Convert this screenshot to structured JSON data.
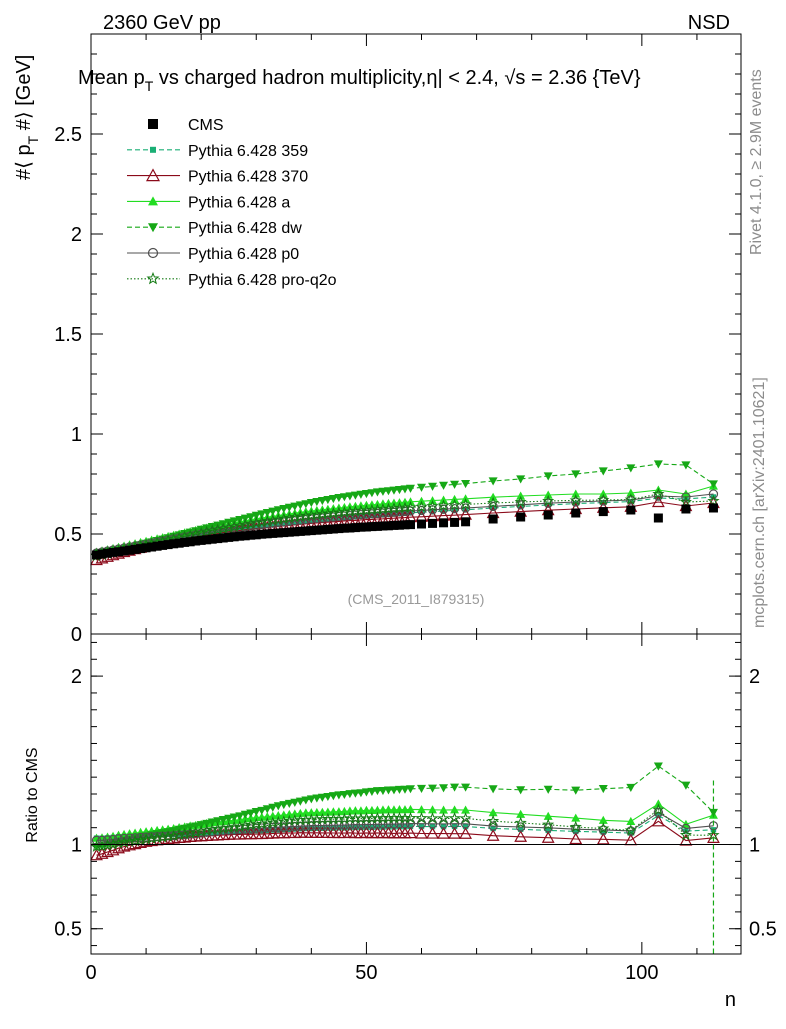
{
  "header": {
    "left": "2360 GeV pp",
    "right": "NSD"
  },
  "side_labels": {
    "top": "Rivet 4.1.0, ≥ 2.9M events",
    "bottom": "mcplots.cern.ch [arXiv:2401.10621]"
  },
  "watermark": "(CMS_2011_I879315)",
  "chart_data": {
    "type": "scatter",
    "title": "Mean p_T vs charged hadron multiplicity, |η| < 2.4, √s = 2.36 {TeV}",
    "title_parts": {
      "a": "Mean p",
      "sub": "T",
      "b": " vs charged hadron multiplicity,",
      "c": "| < 2.4,",
      "d": "s = 2.36 {TeV}",
      "eta": "η",
      "sqrt": "√"
    },
    "xlabel": "n",
    "ylabel": "#⟨ p_T #⟩ [GeV]",
    "ylabel_parts": {
      "a": "#⟨ p",
      "sub": "T",
      "b": " #⟩ [GeV]"
    },
    "ratio_ylabel": "Ratio to CMS",
    "xlim": [
      0,
      118
    ],
    "ylim": [
      0,
      3.0
    ],
    "ratio_ylim": [
      0.35,
      2.25
    ],
    "x_ticks": [
      "0",
      "50",
      "100"
    ],
    "x_tick_values": [
      0,
      50,
      100
    ],
    "y_ticks": [
      "0",
      "0.5",
      "1",
      "1.5",
      "2",
      "2.5"
    ],
    "y_tick_values": [
      0,
      0.5,
      1,
      1.5,
      2,
      2.5
    ],
    "ratio_ticks": [
      "0.5",
      "1",
      "2"
    ],
    "ratio_tick_values": [
      0.5,
      1,
      2
    ],
    "legend": [
      {
        "label": "CMS",
        "color": "#000000",
        "marker": "square",
        "dash": ""
      },
      {
        "label": "Pythia 6.428 359",
        "color": "#1aaf75",
        "marker": "smallsquare",
        "dash": "5,3"
      },
      {
        "label": "Pythia 6.428 370",
        "color": "#8b0a1a",
        "marker": "triangle-open",
        "dash": ""
      },
      {
        "label": "Pythia 6.428 a",
        "color": "#22dd22",
        "marker": "triangle",
        "dash": ""
      },
      {
        "label": "Pythia 6.428 dw",
        "color": "#16a816",
        "marker": "triangle-down",
        "dash": "5,3"
      },
      {
        "label": "Pythia 6.428 p0",
        "color": "#505050",
        "marker": "circle-open",
        "dash": ""
      },
      {
        "label": "Pythia 6.428 pro-q2o",
        "color": "#137a13",
        "marker": "star",
        "dash": "1.5,2"
      }
    ],
    "x": [
      1,
      2,
      3,
      4,
      5,
      6,
      7,
      8,
      9,
      10,
      11,
      12,
      13,
      14,
      15,
      16,
      17,
      18,
      19,
      20,
      21,
      22,
      23,
      24,
      25,
      26,
      27,
      28,
      29,
      30,
      31,
      32,
      33,
      34,
      35,
      36,
      37,
      38,
      39,
      40,
      41,
      42,
      43,
      44,
      45,
      46,
      47,
      48,
      49,
      50,
      51,
      52,
      53,
      54,
      55,
      56,
      57,
      58,
      60,
      62,
      64,
      66,
      68,
      73,
      78,
      83,
      88,
      93,
      98,
      103,
      108,
      113
    ],
    "series": [
      {
        "name": "CMS",
        "values": [
          0.395,
          0.4,
          0.404,
          0.408,
          0.411,
          0.415,
          0.419,
          0.423,
          0.427,
          0.431,
          0.435,
          0.439,
          0.443,
          0.447,
          0.451,
          0.454,
          0.458,
          0.461,
          0.465,
          0.468,
          0.471,
          0.474,
          0.477,
          0.48,
          0.483,
          0.486,
          0.489,
          0.491,
          0.494,
          0.496,
          0.499,
          0.501,
          0.503,
          0.505,
          0.507,
          0.509,
          0.511,
          0.513,
          0.515,
          0.517,
          0.519,
          0.521,
          0.523,
          0.525,
          0.527,
          0.529,
          0.53,
          0.532,
          0.534,
          0.535,
          0.537,
          0.538,
          0.54,
          0.541,
          0.543,
          0.544,
          0.546,
          0.547,
          0.55,
          0.553,
          0.556,
          0.558,
          0.561,
          0.575,
          0.585,
          0.595,
          0.605,
          0.612,
          0.62,
          0.58,
          0.625,
          0.63
        ]
      },
      {
        "name": "Pythia 6.428 359",
        "values": [
          0.41,
          0.415,
          0.42,
          0.425,
          0.43,
          0.435,
          0.44,
          0.445,
          0.45,
          0.455,
          0.46,
          0.465,
          0.47,
          0.474,
          0.478,
          0.482,
          0.486,
          0.49,
          0.494,
          0.498,
          0.502,
          0.506,
          0.51,
          0.514,
          0.518,
          0.522,
          0.526,
          0.53,
          0.533,
          0.537,
          0.54,
          0.543,
          0.546,
          0.549,
          0.552,
          0.555,
          0.558,
          0.561,
          0.564,
          0.566,
          0.569,
          0.571,
          0.574,
          0.576,
          0.579,
          0.581,
          0.583,
          0.586,
          0.588,
          0.59,
          0.592,
          0.594,
          0.596,
          0.598,
          0.6,
          0.602,
          0.604,
          0.606,
          0.609,
          0.612,
          0.615,
          0.618,
          0.621,
          0.63,
          0.638,
          0.645,
          0.652,
          0.657,
          0.662,
          0.68,
          0.675,
          0.685
        ]
      },
      {
        "name": "Pythia 6.428 370",
        "values": [
          0.37,
          0.378,
          0.386,
          0.394,
          0.402,
          0.41,
          0.417,
          0.424,
          0.431,
          0.438,
          0.444,
          0.45,
          0.456,
          0.462,
          0.467,
          0.472,
          0.477,
          0.482,
          0.487,
          0.491,
          0.495,
          0.499,
          0.503,
          0.507,
          0.511,
          0.515,
          0.518,
          0.521,
          0.524,
          0.527,
          0.53,
          0.533,
          0.536,
          0.539,
          0.541,
          0.544,
          0.546,
          0.549,
          0.551,
          0.553,
          0.555,
          0.557,
          0.559,
          0.561,
          0.563,
          0.565,
          0.567,
          0.568,
          0.57,
          0.572,
          0.573,
          0.575,
          0.576,
          0.578,
          0.579,
          0.581,
          0.582,
          0.584,
          0.586,
          0.589,
          0.592,
          0.594,
          0.597,
          0.605,
          0.612,
          0.619,
          0.625,
          0.631,
          0.636,
          0.66,
          0.64,
          0.655
        ]
      },
      {
        "name": "Pythia 6.428 a",
        "values": [
          0.41,
          0.416,
          0.422,
          0.428,
          0.434,
          0.44,
          0.446,
          0.452,
          0.458,
          0.464,
          0.47,
          0.476,
          0.482,
          0.488,
          0.494,
          0.5,
          0.506,
          0.512,
          0.518,
          0.524,
          0.53,
          0.536,
          0.541,
          0.546,
          0.551,
          0.556,
          0.561,
          0.566,
          0.571,
          0.576,
          0.58,
          0.584,
          0.588,
          0.592,
          0.596,
          0.6,
          0.604,
          0.608,
          0.612,
          0.615,
          0.618,
          0.621,
          0.624,
          0.627,
          0.63,
          0.633,
          0.636,
          0.639,
          0.641,
          0.644,
          0.646,
          0.648,
          0.651,
          0.653,
          0.655,
          0.657,
          0.659,
          0.661,
          0.664,
          0.667,
          0.67,
          0.673,
          0.676,
          0.684,
          0.69,
          0.695,
          0.7,
          0.7,
          0.705,
          0.72,
          0.7,
          0.74
        ]
      },
      {
        "name": "Pythia 6.428 dw",
        "values": [
          0.39,
          0.397,
          0.404,
          0.411,
          0.418,
          0.425,
          0.432,
          0.439,
          0.446,
          0.453,
          0.46,
          0.467,
          0.474,
          0.481,
          0.488,
          0.495,
          0.502,
          0.509,
          0.516,
          0.523,
          0.53,
          0.537,
          0.544,
          0.551,
          0.558,
          0.565,
          0.572,
          0.579,
          0.586,
          0.593,
          0.6,
          0.607,
          0.614,
          0.621,
          0.627,
          0.633,
          0.639,
          0.645,
          0.651,
          0.657,
          0.662,
          0.667,
          0.672,
          0.677,
          0.682,
          0.686,
          0.69,
          0.694,
          0.698,
          0.702,
          0.706,
          0.71,
          0.713,
          0.716,
          0.719,
          0.722,
          0.725,
          0.728,
          0.733,
          0.738,
          0.743,
          0.748,
          0.752,
          0.765,
          0.775,
          0.79,
          0.8,
          0.815,
          0.83,
          0.85,
          0.845,
          0.75
        ]
      },
      {
        "name": "Pythia 6.428 p0",
        "values": [
          0.405,
          0.41,
          0.415,
          0.42,
          0.425,
          0.43,
          0.435,
          0.44,
          0.445,
          0.45,
          0.455,
          0.46,
          0.465,
          0.47,
          0.475,
          0.48,
          0.485,
          0.49,
          0.495,
          0.5,
          0.505,
          0.51,
          0.515,
          0.52,
          0.524,
          0.528,
          0.532,
          0.536,
          0.54,
          0.544,
          0.548,
          0.551,
          0.554,
          0.557,
          0.56,
          0.563,
          0.566,
          0.569,
          0.572,
          0.575,
          0.578,
          0.58,
          0.583,
          0.585,
          0.588,
          0.59,
          0.592,
          0.595,
          0.597,
          0.599,
          0.601,
          0.603,
          0.605,
          0.607,
          0.609,
          0.611,
          0.613,
          0.615,
          0.618,
          0.621,
          0.624,
          0.627,
          0.63,
          0.638,
          0.646,
          0.654,
          0.66,
          0.665,
          0.67,
          0.69,
          0.685,
          0.7
        ]
      },
      {
        "name": "Pythia 6.428 pro-q2o",
        "values": [
          0.39,
          0.396,
          0.402,
          0.408,
          0.414,
          0.42,
          0.426,
          0.432,
          0.438,
          0.444,
          0.45,
          0.456,
          0.462,
          0.468,
          0.474,
          0.48,
          0.486,
          0.492,
          0.498,
          0.504,
          0.51,
          0.516,
          0.521,
          0.526,
          0.531,
          0.536,
          0.541,
          0.546,
          0.551,
          0.556,
          0.56,
          0.564,
          0.568,
          0.572,
          0.576,
          0.58,
          0.584,
          0.587,
          0.59,
          0.593,
          0.596,
          0.599,
          0.602,
          0.604,
          0.607,
          0.609,
          0.612,
          0.614,
          0.616,
          0.618,
          0.62,
          0.622,
          0.624,
          0.626,
          0.628,
          0.63,
          0.631,
          0.633,
          0.636,
          0.639,
          0.642,
          0.645,
          0.648,
          0.655,
          0.66,
          0.665,
          0.668,
          0.67,
          0.672,
          0.7,
          0.66,
          0.665
        ]
      }
    ]
  }
}
